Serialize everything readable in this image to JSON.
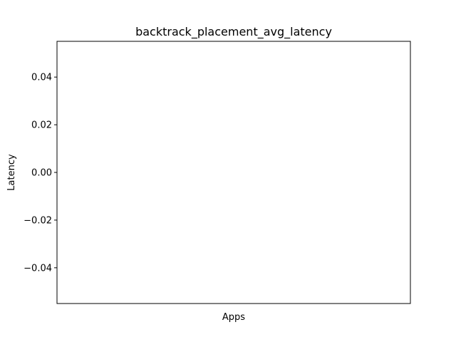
{
  "chart_data": {
    "type": "bar",
    "title": "backtrack_placement_avg_latency",
    "xlabel": "Apps",
    "ylabel": "Latency",
    "categories": [],
    "values": [],
    "ylim": [
      -0.055,
      0.055
    ],
    "yticks": [
      -0.04,
      -0.02,
      0.0,
      0.02,
      0.04
    ],
    "ytick_labels": [
      "−0.04",
      "−0.02",
      "0.00",
      "0.02",
      "0.04"
    ],
    "grid": false,
    "legend": "none"
  }
}
